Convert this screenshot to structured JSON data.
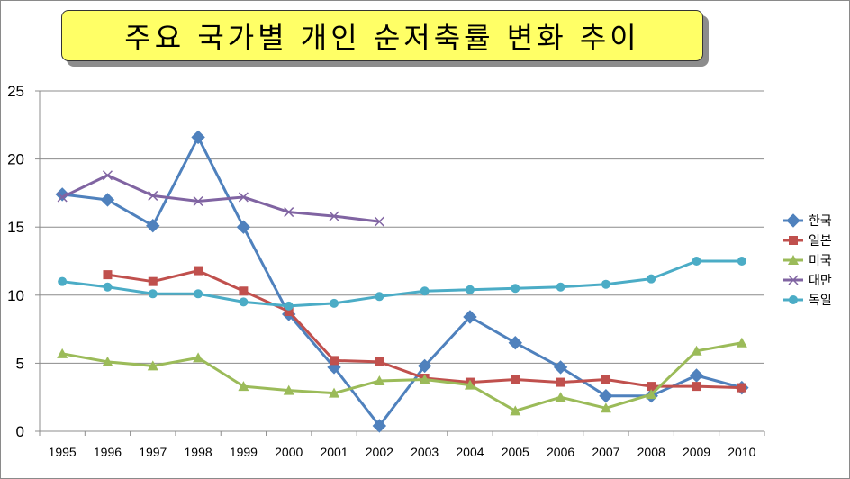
{
  "chart_data": {
    "type": "line",
    "title": "주요 국가별 개인 순저축률 변화 추이",
    "xlabel": "",
    "ylabel": "",
    "x": [
      "1995",
      "1996",
      "1997",
      "1998",
      "1999",
      "2000",
      "2001",
      "2002",
      "2003",
      "2004",
      "2005",
      "2006",
      "2007",
      "2008",
      "2009",
      "2010"
    ],
    "ylim": [
      0,
      25
    ],
    "yticks": [
      0,
      5,
      10,
      15,
      20,
      25
    ],
    "grid": true,
    "legend_position": "right",
    "series": [
      {
        "name": "한국",
        "color": "#4f81bd",
        "marker": "diamond",
        "values": [
          17.4,
          17.0,
          15.1,
          21.6,
          15.0,
          8.6,
          4.7,
          0.4,
          4.8,
          8.4,
          6.5,
          4.7,
          2.6,
          2.6,
          4.1,
          3.2
        ]
      },
      {
        "name": "일본",
        "color": "#c0504d",
        "marker": "square",
        "values": [
          null,
          11.5,
          11.0,
          11.8,
          10.3,
          8.8,
          5.2,
          5.1,
          3.9,
          3.6,
          3.8,
          3.6,
          3.8,
          3.3,
          3.3,
          3.2
        ]
      },
      {
        "name": "미국",
        "color": "#9bbb59",
        "marker": "triangle",
        "values": [
          5.7,
          5.1,
          4.8,
          5.4,
          3.3,
          3.0,
          2.8,
          3.7,
          3.8,
          3.4,
          1.5,
          2.5,
          1.7,
          2.7,
          5.9,
          6.5
        ]
      },
      {
        "name": "대만",
        "color": "#8064a2",
        "marker": "x",
        "values": [
          17.2,
          18.8,
          17.3,
          16.9,
          17.2,
          16.1,
          15.8,
          15.4,
          null,
          null,
          null,
          null,
          null,
          null,
          null,
          null
        ]
      },
      {
        "name": "독일",
        "color": "#4bacc6",
        "marker": "circle",
        "values": [
          11.0,
          10.6,
          10.1,
          10.1,
          9.5,
          9.2,
          9.4,
          9.9,
          10.3,
          10.4,
          10.5,
          10.6,
          10.8,
          11.2,
          12.5,
          12.5
        ]
      }
    ]
  }
}
